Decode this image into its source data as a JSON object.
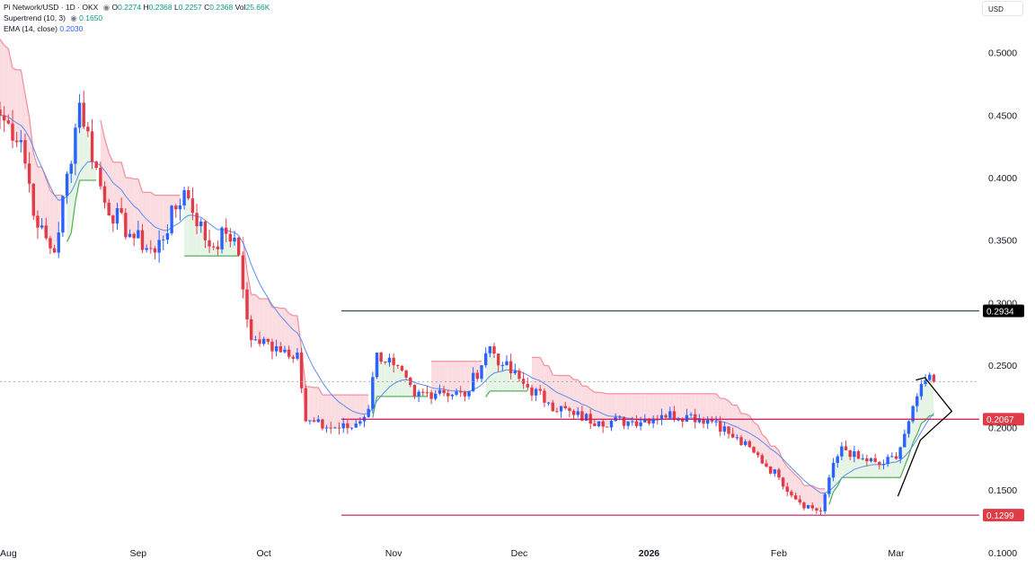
{
  "legend": {
    "symbol": "Pi Network/USD · 1D · OKX",
    "open_label": "O",
    "open": "0.2274",
    "high_label": "H",
    "high": "0.2368",
    "low_label": "L",
    "low": "0.2257",
    "close_label": "C",
    "close": "0.2368",
    "vol_label": "Vol",
    "vol": "25.66K",
    "supertrend_label": "Supertrend (10, 3)",
    "supertrend": "0.1650",
    "ema_label": "EMA (14, close)",
    "ema": "0.2030",
    "eye_icon": "eye-icon"
  },
  "currency_button": "USD",
  "colors": {
    "up": "#2962ff",
    "down": "#e03c48",
    "ema": "#5b8def",
    "st_up_fill": "#e6f4e6",
    "st_up_line": "#4caf50",
    "st_down_fill": "#fbdde1",
    "st_down_line": "#f28b9a",
    "resistance_badge": "#000000",
    "support_badge": "#e03c48",
    "mid_badge": "#e03c48",
    "pattern_line": "#000000"
  },
  "chart_data": {
    "type": "candlestick",
    "title": "",
    "xlabel": "",
    "ylabel": "",
    "ylim": [
      0.097,
      0.535
    ],
    "y_ticks": [
      "0.1000",
      "0.1500",
      "0.2000",
      "0.2500",
      "0.3000",
      "0.3500",
      "0.4000",
      "0.4500",
      "0.5000"
    ],
    "x_labels": [
      "Aug",
      "Sep",
      "Oct",
      "Nov",
      "Dec",
      "2026",
      "Feb",
      "Mar"
    ],
    "x_label_dates": [
      "2025-08-01",
      "2025-09-01",
      "2025-10-01",
      "2025-11-01",
      "2025-12-01",
      "2026-01-01",
      "2026-02-01",
      "2026-03-01"
    ],
    "x_range": [
      "2025-07-30",
      "2026-03-23"
    ],
    "grid": false,
    "price_levels": [
      {
        "value": 0.2934,
        "label": "0.2934",
        "style": "solid",
        "color": "#2f4f4f"
      },
      {
        "value": 0.2067,
        "label": "0.2067",
        "style": "solid",
        "color": "#c2185b"
      },
      {
        "value": 0.1299,
        "label": "0.1299",
        "style": "solid",
        "color": "#c2185b"
      },
      {
        "value": 0.2368,
        "label": "",
        "style": "dotted",
        "color": "#9aa0a6"
      }
    ],
    "anchor_dates": [
      "2025-07-30",
      "2025-08-04",
      "2025-08-08",
      "2025-08-12",
      "2025-08-18",
      "2025-08-24",
      "2025-08-30",
      "2025-09-05",
      "2025-09-12",
      "2025-09-18",
      "2025-09-22",
      "2025-09-24",
      "2025-09-28",
      "2025-10-04",
      "2025-10-09",
      "2025-10-11",
      "2025-10-16",
      "2025-10-22",
      "2025-10-26",
      "2025-10-28",
      "2025-11-01",
      "2025-11-06",
      "2025-11-12",
      "2025-11-18",
      "2025-11-24",
      "2025-11-27",
      "2025-12-02",
      "2025-12-08",
      "2025-12-14",
      "2025-12-20",
      "2025-12-28",
      "2026-01-04",
      "2026-01-10",
      "2026-01-17",
      "2026-01-20",
      "2026-01-26",
      "2026-02-01",
      "2026-02-06",
      "2026-02-11",
      "2026-02-13",
      "2026-02-16",
      "2026-02-20",
      "2026-02-25",
      "2026-03-01",
      "2026-03-04",
      "2026-03-06",
      "2026-03-08",
      "2026-03-10"
    ],
    "anchor_closes": [
      0.45,
      0.43,
      0.36,
      0.34,
      0.46,
      0.38,
      0.355,
      0.34,
      0.39,
      0.345,
      0.355,
      0.352,
      0.27,
      0.265,
      0.26,
      0.205,
      0.2,
      0.2,
      0.215,
      0.26,
      0.25,
      0.225,
      0.23,
      0.225,
      0.265,
      0.25,
      0.235,
      0.22,
      0.21,
      0.205,
      0.205,
      0.21,
      0.21,
      0.205,
      0.195,
      0.18,
      0.16,
      0.14,
      0.133,
      0.16,
      0.185,
      0.175,
      0.17,
      0.175,
      0.205,
      0.225,
      0.238,
      0.2368
    ],
    "daily_candles_note": "",
    "ema": {
      "name": "EMA (14, close)",
      "last_value": 0.203
    },
    "supertrend": {
      "name": "Supertrend (10, 3)",
      "last_value": 0.165
    }
  }
}
